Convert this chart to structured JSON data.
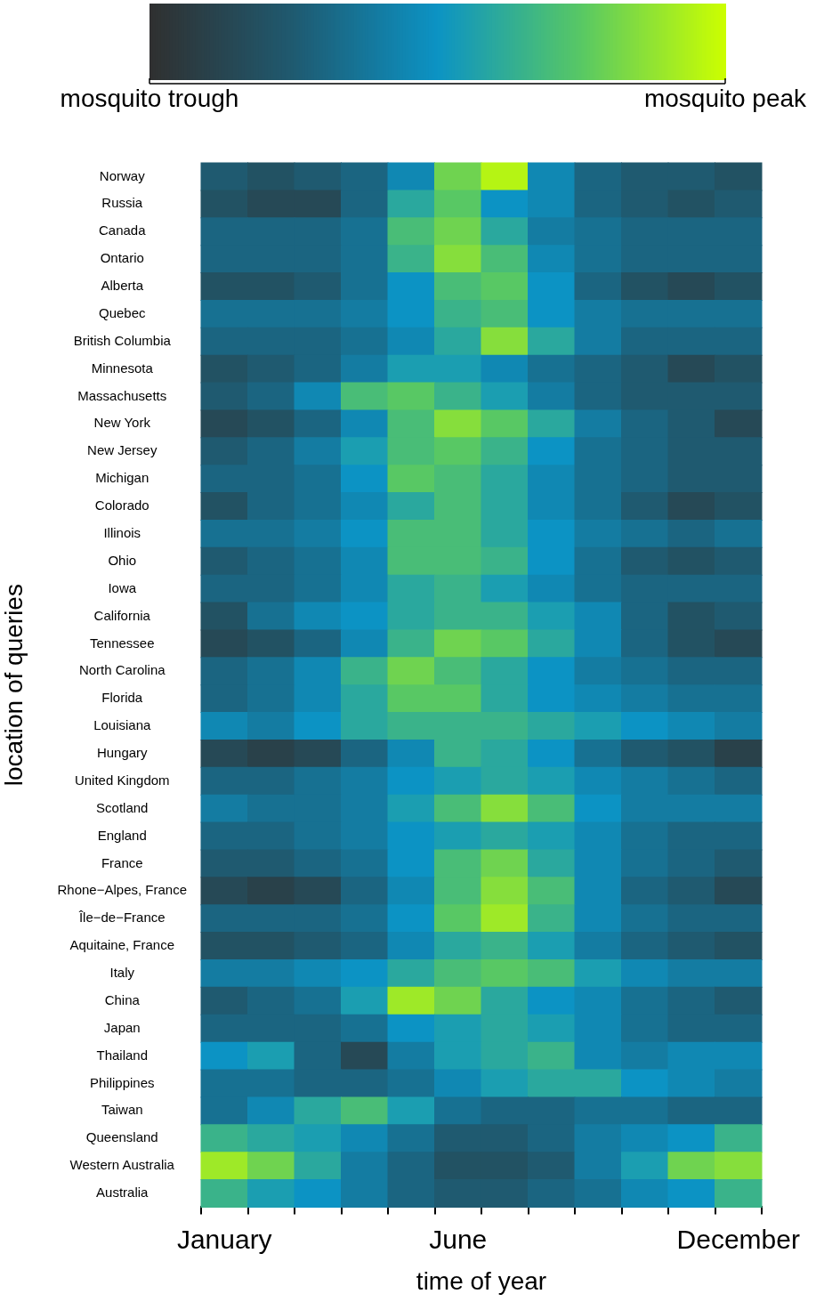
{
  "chart_data": {
    "type": "heatmap",
    "xlabel": "time of year",
    "ylabel": "location of queries",
    "categories": [
      "January",
      null,
      null,
      null,
      null,
      "June",
      null,
      null,
      null,
      null,
      null,
      "December"
    ],
    "y_categories": [
      "Norway",
      "Russia",
      "Canada",
      "Ontario",
      "Alberta",
      "Quebec",
      "British Columbia",
      "Minnesota",
      "Massachusetts",
      "New York",
      "New Jersey",
      "Michigan",
      "Colorado",
      "Illinois",
      "Ohio",
      "Iowa",
      "California",
      "Tennessee",
      "North Carolina",
      "Florida",
      "Louisiana",
      "Hungary",
      "United Kingdom",
      "Scotland",
      "England",
      "France",
      "Rhone−Alpes, France",
      "Île−de−France",
      "Aquitaine, France",
      "Italy",
      "China",
      "Japan",
      "Thailand",
      "Philippines",
      "Taiwan",
      "Queensland",
      "Western Australia",
      "Australia"
    ],
    "cells": [
      [
        0.25,
        0.2,
        0.25,
        0.3,
        0.45,
        0.8,
        0.95,
        0.45,
        0.3,
        0.25,
        0.25,
        0.2
      ],
      [
        0.2,
        0.15,
        0.15,
        0.3,
        0.6,
        0.75,
        0.5,
        0.45,
        0.3,
        0.25,
        0.2,
        0.25
      ],
      [
        0.3,
        0.3,
        0.3,
        0.35,
        0.7,
        0.8,
        0.6,
        0.4,
        0.35,
        0.3,
        0.3,
        0.3
      ],
      [
        0.3,
        0.3,
        0.3,
        0.35,
        0.65,
        0.85,
        0.7,
        0.45,
        0.35,
        0.3,
        0.3,
        0.3
      ],
      [
        0.2,
        0.2,
        0.25,
        0.35,
        0.5,
        0.7,
        0.75,
        0.5,
        0.3,
        0.2,
        0.15,
        0.2
      ],
      [
        0.35,
        0.35,
        0.35,
        0.4,
        0.5,
        0.65,
        0.7,
        0.5,
        0.4,
        0.35,
        0.35,
        0.35
      ],
      [
        0.3,
        0.3,
        0.3,
        0.35,
        0.45,
        0.6,
        0.85,
        0.6,
        0.4,
        0.3,
        0.3,
        0.3
      ],
      [
        0.2,
        0.25,
        0.3,
        0.4,
        0.55,
        0.55,
        0.45,
        0.35,
        0.3,
        0.25,
        0.15,
        0.2
      ],
      [
        0.25,
        0.3,
        0.45,
        0.7,
        0.75,
        0.65,
        0.55,
        0.4,
        0.3,
        0.25,
        0.25,
        0.25
      ],
      [
        0.15,
        0.2,
        0.3,
        0.45,
        0.7,
        0.85,
        0.75,
        0.6,
        0.4,
        0.3,
        0.25,
        0.15
      ],
      [
        0.25,
        0.3,
        0.4,
        0.55,
        0.7,
        0.75,
        0.65,
        0.5,
        0.35,
        0.3,
        0.25,
        0.25
      ],
      [
        0.3,
        0.3,
        0.35,
        0.5,
        0.75,
        0.7,
        0.6,
        0.45,
        0.35,
        0.3,
        0.25,
        0.25
      ],
      [
        0.2,
        0.3,
        0.35,
        0.45,
        0.6,
        0.7,
        0.6,
        0.45,
        0.35,
        0.25,
        0.15,
        0.2
      ],
      [
        0.35,
        0.35,
        0.4,
        0.5,
        0.7,
        0.7,
        0.6,
        0.5,
        0.4,
        0.35,
        0.3,
        0.35
      ],
      [
        0.25,
        0.3,
        0.35,
        0.45,
        0.7,
        0.7,
        0.65,
        0.5,
        0.35,
        0.25,
        0.2,
        0.25
      ],
      [
        0.3,
        0.3,
        0.35,
        0.45,
        0.6,
        0.65,
        0.55,
        0.45,
        0.35,
        0.3,
        0.3,
        0.3
      ],
      [
        0.2,
        0.35,
        0.45,
        0.5,
        0.6,
        0.65,
        0.65,
        0.55,
        0.45,
        0.3,
        0.2,
        0.25
      ],
      [
        0.15,
        0.2,
        0.3,
        0.45,
        0.65,
        0.8,
        0.75,
        0.6,
        0.45,
        0.3,
        0.2,
        0.15
      ],
      [
        0.3,
        0.35,
        0.45,
        0.65,
        0.8,
        0.7,
        0.6,
        0.5,
        0.4,
        0.35,
        0.3,
        0.3
      ],
      [
        0.3,
        0.35,
        0.45,
        0.6,
        0.75,
        0.75,
        0.6,
        0.5,
        0.45,
        0.4,
        0.35,
        0.35
      ],
      [
        0.45,
        0.4,
        0.5,
        0.6,
        0.65,
        0.65,
        0.65,
        0.6,
        0.55,
        0.5,
        0.45,
        0.4
      ],
      [
        0.15,
        0.1,
        0.15,
        0.3,
        0.45,
        0.65,
        0.6,
        0.5,
        0.35,
        0.25,
        0.2,
        0.1
      ],
      [
        0.3,
        0.3,
        0.35,
        0.4,
        0.5,
        0.55,
        0.6,
        0.55,
        0.45,
        0.4,
        0.35,
        0.3
      ],
      [
        0.4,
        0.35,
        0.35,
        0.4,
        0.55,
        0.7,
        0.85,
        0.7,
        0.5,
        0.4,
        0.4,
        0.4
      ],
      [
        0.3,
        0.3,
        0.35,
        0.4,
        0.5,
        0.55,
        0.6,
        0.55,
        0.45,
        0.35,
        0.3,
        0.3
      ],
      [
        0.25,
        0.25,
        0.3,
        0.35,
        0.5,
        0.7,
        0.8,
        0.6,
        0.45,
        0.35,
        0.3,
        0.25
      ],
      [
        0.15,
        0.1,
        0.15,
        0.3,
        0.45,
        0.7,
        0.85,
        0.7,
        0.45,
        0.3,
        0.25,
        0.15
      ],
      [
        0.3,
        0.3,
        0.3,
        0.35,
        0.5,
        0.75,
        0.9,
        0.65,
        0.45,
        0.35,
        0.3,
        0.3
      ],
      [
        0.2,
        0.2,
        0.25,
        0.3,
        0.45,
        0.6,
        0.65,
        0.55,
        0.4,
        0.3,
        0.25,
        0.2
      ],
      [
        0.4,
        0.4,
        0.45,
        0.5,
        0.6,
        0.7,
        0.75,
        0.7,
        0.55,
        0.45,
        0.4,
        0.4
      ],
      [
        0.25,
        0.3,
        0.35,
        0.55,
        0.9,
        0.8,
        0.6,
        0.5,
        0.45,
        0.35,
        0.3,
        0.25
      ],
      [
        0.3,
        0.3,
        0.3,
        0.35,
        0.5,
        0.55,
        0.6,
        0.55,
        0.45,
        0.35,
        0.3,
        0.3
      ],
      [
        0.5,
        0.55,
        0.3,
        0.15,
        0.4,
        0.55,
        0.6,
        0.65,
        0.45,
        0.4,
        0.45,
        0.45
      ],
      [
        0.35,
        0.35,
        0.3,
        0.3,
        0.35,
        0.45,
        0.55,
        0.6,
        0.6,
        0.5,
        0.45,
        0.4
      ],
      [
        0.35,
        0.45,
        0.6,
        0.7,
        0.55,
        0.35,
        0.3,
        0.3,
        0.35,
        0.35,
        0.3,
        0.3
      ],
      [
        0.65,
        0.6,
        0.55,
        0.45,
        0.35,
        0.25,
        0.25,
        0.3,
        0.4,
        0.45,
        0.5,
        0.65
      ],
      [
        0.9,
        0.8,
        0.6,
        0.4,
        0.3,
        0.2,
        0.2,
        0.25,
        0.4,
        0.55,
        0.8,
        0.85
      ],
      [
        0.65,
        0.55,
        0.5,
        0.4,
        0.3,
        0.25,
        0.25,
        0.3,
        0.35,
        0.45,
        0.5,
        0.65
      ]
    ],
    "clim": [
      0,
      1
    ],
    "cticks": [
      {
        "value": 0,
        "label": "mosquito trough"
      },
      {
        "value": 1,
        "label": "mosquito peak"
      }
    ]
  }
}
